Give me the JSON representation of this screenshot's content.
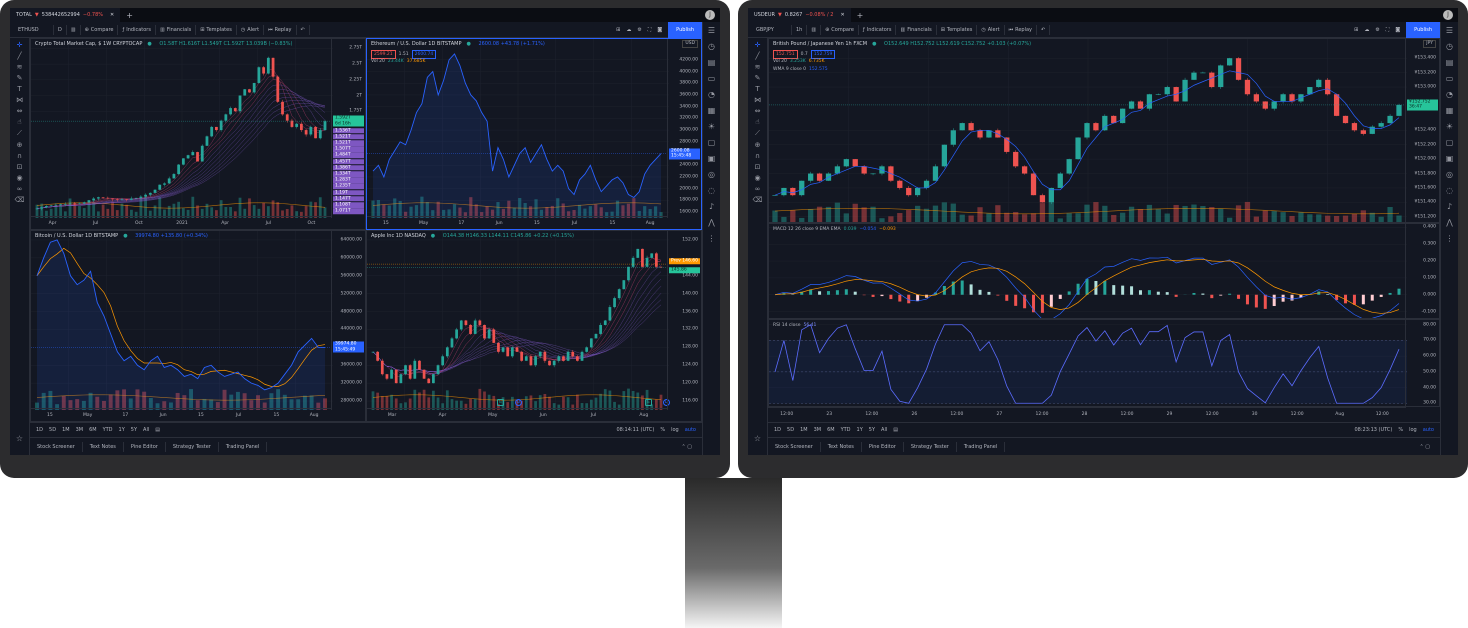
{
  "colors": {
    "background": "#131722",
    "up": "#26a69a",
    "down": "#ef5350",
    "accent": "#2962ff",
    "ma": "#ff9800",
    "ribbon": "#7e57c2",
    "grid": "#1e222d"
  },
  "common": {
    "toolbar": {
      "compare": "Compare",
      "indicators": "Indicators",
      "financials": "Financials",
      "templates": "Templates",
      "alert": "Alert",
      "replay": "Replay",
      "publish": "Publish"
    },
    "timeframes": [
      "1D",
      "5D",
      "1M",
      "3M",
      "6M",
      "YTD",
      "1Y",
      "5Y",
      "All"
    ],
    "scale": {
      "percent": "%",
      "log": "log",
      "auto": "auto"
    },
    "bottom_tabs": [
      "Stock Screener",
      "Text Notes",
      "Pine Editor",
      "Strategy Tester",
      "Trading Panel"
    ],
    "left_tools": [
      "crosshair-icon",
      "trend-line-icon",
      "fib-icon",
      "brush-icon",
      "text-icon",
      "pattern-icon",
      "measure-icon",
      "thumb-icon",
      "ruler-icon",
      "zoom-icon",
      "magnet-icon",
      "lock-icon",
      "eye-icon",
      "link-icon",
      "trash-icon"
    ],
    "sidebar_icons": [
      "watchlist-icon",
      "alarm-icon",
      "news-icon",
      "data-window-icon",
      "hotlist-icon",
      "calendar-icon",
      "ideas-icon",
      "chat-icon",
      "private-chat-icon",
      "idea-stream-icon",
      "streams-icon",
      "notifications-icon",
      "pine-icon",
      "dom-icon"
    ]
  },
  "monitors": [
    {
      "tab": {
        "symbol": "TOTAL",
        "arrow": "▼",
        "price": "538442652994",
        "change": "−0.78%",
        "close": "✕",
        "plus": "+"
      },
      "avatar": "J",
      "toolbar": {
        "symbol": "ETHUSD",
        "interval": "D"
      },
      "clock": "08:14:11 (UTC)",
      "panes": [
        {
          "id": "total",
          "type": "candles",
          "ribbon": true,
          "title": "Crypto Total Market Cap, $  1W  CRYPTOCAP",
          "values": "O1.58T H1.616T L1.549T C1.592T 13.039B (−0.83%)",
          "ylim": [
            0.05,
            2.9
          ],
          "yticks": [
            {
              "v": 2.75,
              "label": "2.75T"
            },
            {
              "v": 2.5,
              "label": "2.5T"
            },
            {
              "v": 2.25,
              "label": "2.25T"
            },
            {
              "v": 2,
              "label": "2T"
            },
            {
              "v": 1.75,
              "label": "1.75T"
            }
          ],
          "price_tag": {
            "v": 1.592,
            "label": "1.592T",
            "sub": "6d 16h"
          },
          "ribbon_labels": [
            "1.536T",
            "1.521T",
            "1.521T",
            "1.507T",
            "1.484T",
            "1.457T",
            "1.386T",
            "1.334T",
            "1.283T",
            "1.235T",
            "1.19T",
            "1.147T",
            "1.108T",
            "1.071T"
          ],
          "xticks": [
            "Apr",
            "Jul",
            "Oct",
            "2021",
            "Apr",
            "Jul",
            "Oct"
          ],
          "closes": [
            0.2,
            0.22,
            0.24,
            0.25,
            0.26,
            0.27,
            0.27,
            0.28,
            0.27,
            0.28,
            0.3,
            0.33,
            0.36,
            0.38,
            0.37,
            0.36,
            0.35,
            0.34,
            0.35,
            0.34,
            0.36,
            0.37,
            0.39,
            0.42,
            0.45,
            0.5,
            0.58,
            0.6,
            0.68,
            0.75,
            0.9,
            1.0,
            1.05,
            1.1,
            0.95,
            1.2,
            1.35,
            1.5,
            1.45,
            1.6,
            1.7,
            1.8,
            1.75,
            2.0,
            2.1,
            2.05,
            2.2,
            2.45,
            2.35,
            2.6,
            2.3,
            1.9,
            1.7,
            1.6,
            1.5,
            1.55,
            1.45,
            1.38,
            1.5,
            1.32,
            1.45,
            1.59
          ]
        },
        {
          "id": "eth",
          "type": "line",
          "active": true,
          "title": "Ethereum / U.S. Dollar  1D  BITSTAMP",
          "values": "2600.08 +43.78 (+1.71%)",
          "sell": "2599.21",
          "spread": "1.51",
          "buy": "2600.74",
          "volume": {
            "label": "Vol 20",
            "v1": "23.44K",
            "v2": "37.685K"
          },
          "currency": "USD",
          "ylim": [
            1500,
            4350
          ],
          "yticks": [
            {
              "v": 4200,
              "label": "4200.00"
            },
            {
              "v": 4000,
              "label": "4000.00"
            },
            {
              "v": 3800,
              "label": "3800.00"
            },
            {
              "v": 3600,
              "label": "3600.00"
            },
            {
              "v": 3400,
              "label": "3400.00"
            },
            {
              "v": 3200,
              "label": "3200.00"
            },
            {
              "v": 3000,
              "label": "3000.00"
            },
            {
              "v": 2800,
              "label": "2800.00"
            },
            {
              "v": 2400,
              "label": "2400.00"
            },
            {
              "v": 2200,
              "label": "2200.00"
            },
            {
              "v": 2000,
              "label": "2000.00"
            },
            {
              "v": 1800,
              "label": "1800.00"
            },
            {
              "v": 1600,
              "label": "1600.00"
            }
          ],
          "price_tag": {
            "v": 2600.08,
            "label": "2600.08",
            "sub": "15:45:48"
          },
          "xticks": [
            "15",
            "May",
            "17",
            "Jun",
            "15",
            "Jul",
            "15",
            "Aug"
          ],
          "closes": [
            2300,
            2400,
            2200,
            2500,
            2650,
            2800,
            2750,
            3000,
            3300,
            3450,
            3900,
            4000,
            3600,
            3850,
            4200,
            4300,
            4100,
            3800,
            3600,
            3500,
            3300,
            3150,
            2300,
            2700,
            2500,
            2200,
            2400,
            2600,
            2700,
            2450,
            2600,
            2750,
            2500,
            2300,
            2400,
            2300,
            2000,
            1900,
            2150,
            2250,
            2400,
            2150,
            1950,
            2050,
            2150,
            2200,
            2100,
            1900,
            1850,
            1950,
            2250,
            2400,
            2500,
            2600
          ]
        },
        {
          "id": "btc",
          "type": "line",
          "ma": true,
          "title": "Bitcoin / U.S. Dollar  1D  BITSTAMP",
          "values": "39974.80 +135.80 (+0.34%)",
          "ylim": [
            26000,
            66000
          ],
          "yticks": [
            {
              "v": 64000,
              "label": "64000.00"
            },
            {
              "v": 60000,
              "label": "60000.00"
            },
            {
              "v": 56000,
              "label": "56000.00"
            },
            {
              "v": 52000,
              "label": "52000.00"
            },
            {
              "v": 48000,
              "label": "48000.00"
            },
            {
              "v": 44000,
              "label": "44000.00"
            },
            {
              "v": 36000,
              "label": "36000.00"
            },
            {
              "v": 32000,
              "label": "32000.00"
            },
            {
              "v": 28000,
              "label": "28000.00"
            }
          ],
          "price_tag": {
            "v": 39974.8,
            "label": "39974.80",
            "sub": "15:45:49"
          },
          "xticks": [
            "15",
            "May",
            "17",
            "Jun",
            "15",
            "Jul",
            "15",
            "Aug"
          ],
          "closes": [
            56000,
            60000,
            63500,
            64000,
            61000,
            56000,
            54000,
            55000,
            57000,
            50000,
            47000,
            43000,
            39000,
            37000,
            38000,
            36000,
            35000,
            37000,
            38000,
            35500,
            36000,
            35000,
            33500,
            34000,
            33000,
            35500,
            36000,
            34500,
            33500,
            34000,
            34500,
            33000,
            32000,
            31500,
            30500,
            31000,
            32000,
            34000,
            36000,
            39000,
            40500,
            42000,
            40000,
            39974.8
          ]
        },
        {
          "id": "aapl",
          "type": "candles",
          "ribbon": true,
          "events": [
            "E",
            "D",
            "E",
            "D"
          ],
          "title": "Apple Inc  1D  NASDAQ",
          "values": "O144.38 H146.33 L144.11 C145.86 +0.22 (+0.15%)",
          "ylim": [
            114,
            154
          ],
          "yticks": [
            {
              "v": 152,
              "label": "152.00"
            },
            {
              "v": 144,
              "label": "144.00"
            },
            {
              "v": 140,
              "label": "140.00"
            },
            {
              "v": 136,
              "label": "136.00"
            },
            {
              "v": 132,
              "label": "132.00"
            },
            {
              "v": 128,
              "label": "128.00"
            },
            {
              "v": 124,
              "label": "124.00"
            },
            {
              "v": 120,
              "label": "120.00"
            },
            {
              "v": 116,
              "label": "116.00"
            }
          ],
          "prev_tag": {
            "v": 146.6,
            "prefix": "Prev",
            "label": "146.60"
          },
          "price_tag": {
            "v": 145.86,
            "label": "145.86"
          },
          "xticks": [
            "Mar",
            "Apr",
            "May",
            "Jun",
            "Jul",
            "Aug"
          ],
          "closes": [
            127,
            125,
            122,
            121,
            123,
            120,
            122,
            124,
            121,
            125,
            123,
            121,
            120,
            122,
            124,
            126,
            128,
            130,
            132,
            134,
            133,
            131,
            134,
            133,
            130,
            132,
            129,
            127,
            128,
            126,
            128,
            127,
            125,
            126,
            124,
            126,
            127,
            125,
            124,
            125,
            126,
            125,
            127,
            126,
            125,
            127,
            128,
            130,
            131,
            133,
            134,
            137,
            139,
            141,
            143,
            146,
            148,
            150,
            146,
            148,
            149,
            146,
            145.86
          ]
        }
      ]
    },
    {
      "tab": {
        "symbol": "USDEUR",
        "arrow": "▼",
        "price": "0.8267",
        "change": "−0.08% / 2",
        "close": "✕",
        "plus": "+"
      },
      "avatar": "J",
      "toolbar": {
        "symbol": "GBPJPY",
        "interval": "1h"
      },
      "clock": "08:23:13 (UTC)",
      "panes": [
        {
          "id": "gbpjpy",
          "type": "candles",
          "wma": true,
          "title": "British Pound / Japanese Yen  1h  FXCM",
          "values": "O152.649 H152.752 L152.619 C152.752 +0.103 (+0.07%)",
          "sell": "152.751",
          "spread": "0.7",
          "buy": "152.759",
          "volume": {
            "label": "Vol 20",
            "v1": "3.253K",
            "v2": "6.735K"
          },
          "wma_legend": {
            "label": "WMA 9 close 0",
            "v": "152.575"
          },
          "currency": "JPY",
          "ylim": [
            151.1,
            153.5
          ],
          "yticks": [
            {
              "v": 153.4,
              "label": "¥153.400"
            },
            {
              "v": 153.2,
              "label": "¥153.200"
            },
            {
              "v": 153.0,
              "label": "¥153.000"
            },
            {
              "v": 152.4,
              "label": "¥152.400"
            },
            {
              "v": 152.2,
              "label": "¥152.200"
            },
            {
              "v": 152.0,
              "label": "¥152.000"
            },
            {
              "v": 151.8,
              "label": "¥151.800"
            },
            {
              "v": 151.6,
              "label": "¥151.600"
            },
            {
              "v": 151.4,
              "label": "¥151.400"
            },
            {
              "v": 151.2,
              "label": "¥151.200"
            }
          ],
          "price_tag": {
            "v": 152.752,
            "label": "¥152.752",
            "sub": "36:47"
          },
          "xticks": [
            "12:00",
            "23",
            "12:00",
            "26",
            "12:00",
            "27",
            "12:00",
            "28",
            "12:00",
            "29",
            "12:00",
            "30",
            "12:00",
            "Aug",
            "12:00"
          ],
          "closes": [
            151.5,
            151.6,
            151.5,
            151.7,
            151.8,
            151.7,
            151.8,
            151.9,
            152.0,
            151.9,
            151.8,
            151.8,
            151.9,
            151.7,
            151.6,
            151.5,
            151.6,
            151.7,
            151.9,
            152.2,
            152.4,
            152.5,
            152.4,
            152.3,
            152.4,
            152.3,
            152.1,
            151.9,
            151.8,
            151.5,
            151.4,
            151.6,
            151.8,
            152.0,
            152.3,
            152.5,
            152.4,
            152.6,
            152.5,
            152.7,
            152.8,
            152.7,
            152.9,
            152.9,
            153.0,
            152.8,
            153.1,
            153.2,
            153.2,
            153.0,
            153.3,
            153.4,
            153.1,
            152.9,
            152.8,
            152.7,
            152.8,
            152.9,
            152.8,
            152.9,
            153.0,
            153.1,
            152.9,
            152.6,
            152.5,
            152.4,
            152.35,
            152.45,
            152.5,
            152.6,
            152.752
          ],
          "macd": {
            "label": "MACD 12 26 close 9 EMA EMA",
            "hist": "0.039",
            "macd": "−0.054",
            "signal": "−0.093",
            "ylim": [
              -0.15,
              0.42
            ],
            "yticks": [
              {
                "v": 0.4,
                "label": "0.400"
              },
              {
                "v": 0.3,
                "label": "0.300"
              },
              {
                "v": 0.2,
                "label": "0.200"
              },
              {
                "v": 0.1,
                "label": "0.100"
              },
              {
                "v": 0,
                "label": "0.000"
              },
              {
                "v": -0.1,
                "label": "-0.100"
              }
            ]
          },
          "rsi": {
            "label": "RSI 14 close",
            "v": "56.41",
            "ylim": [
              27,
              83
            ],
            "band": [
              30,
              70
            ],
            "yticks": [
              {
                "v": 80,
                "label": "80.00"
              },
              {
                "v": 70,
                "label": "70.00"
              },
              {
                "v": 60,
                "label": "60.00"
              },
              {
                "v": 50,
                "label": "50.00"
              },
              {
                "v": 40,
                "label": "40.00"
              },
              {
                "v": 30,
                "label": "30.00"
              }
            ]
          }
        }
      ]
    }
  ]
}
